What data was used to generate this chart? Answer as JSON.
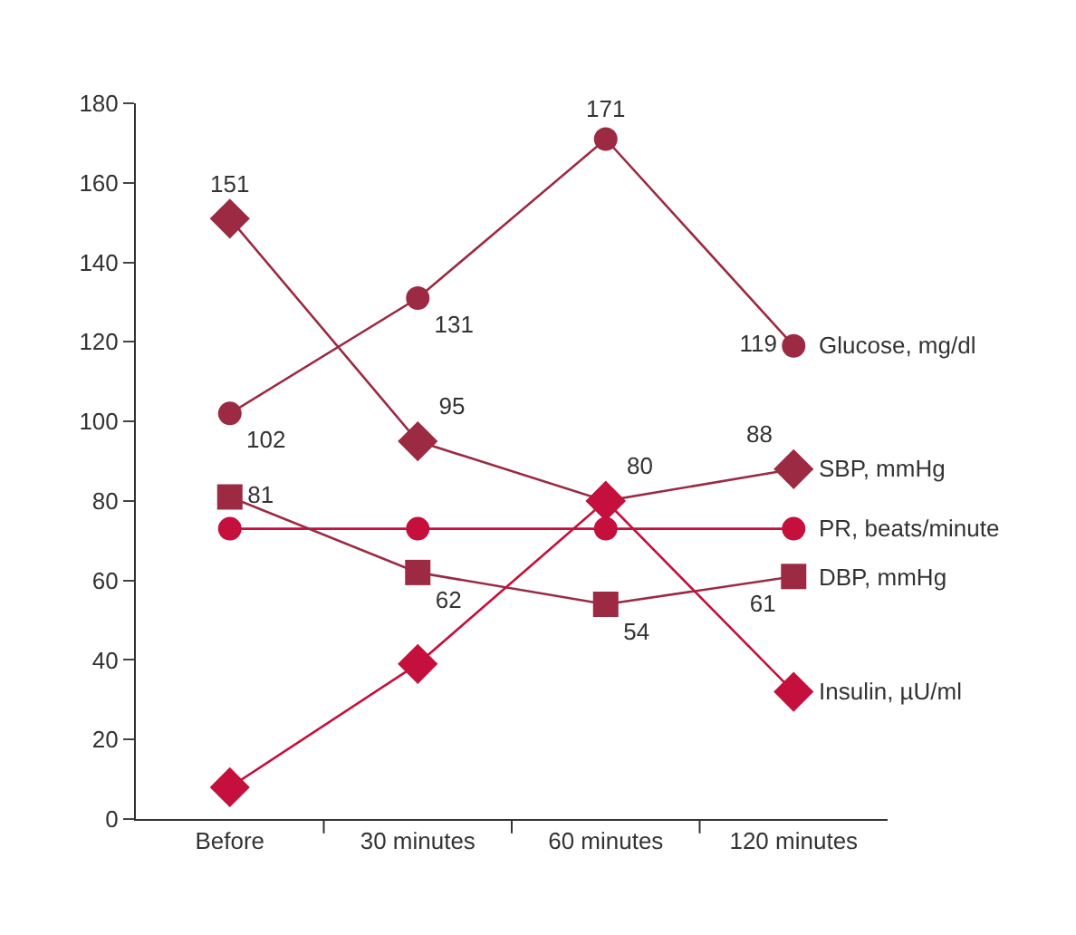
{
  "chart_data": {
    "type": "line",
    "categories": [
      "Before",
      "30 minutes",
      "60 minutes",
      "120 minutes"
    ],
    "ylim": [
      0,
      180
    ],
    "yticks": [
      0,
      20,
      40,
      60,
      80,
      100,
      120,
      140,
      160,
      180
    ],
    "legend": false,
    "series": [
      {
        "name": "Glucose, mg/dl",
        "color": "#9b2a42",
        "marker": "circle",
        "values": [
          102,
          131,
          171,
          119
        ],
        "value_labels": [
          "102",
          "131",
          "171",
          "119"
        ]
      },
      {
        "name": "SBP, mmHg",
        "color": "#9b2a42",
        "marker": "diamond",
        "values": [
          151,
          95,
          80,
          88
        ],
        "value_labels": [
          "151",
          "95",
          "80",
          "88"
        ]
      },
      {
        "name": "PR, beats/minute",
        "color": "#c50f3c",
        "marker": "circle",
        "values": [
          73,
          73,
          73,
          73
        ]
      },
      {
        "name": "DBP, mmHg",
        "color": "#9b2a42",
        "marker": "square",
        "values": [
          81,
          62,
          54,
          61
        ],
        "value_labels": [
          "81",
          "62",
          "54",
          "61"
        ]
      },
      {
        "name": "Insulin, µU/ml",
        "color": "#c50f3c",
        "marker": "diamond",
        "values": [
          8,
          39,
          80,
          32
        ]
      }
    ]
  }
}
